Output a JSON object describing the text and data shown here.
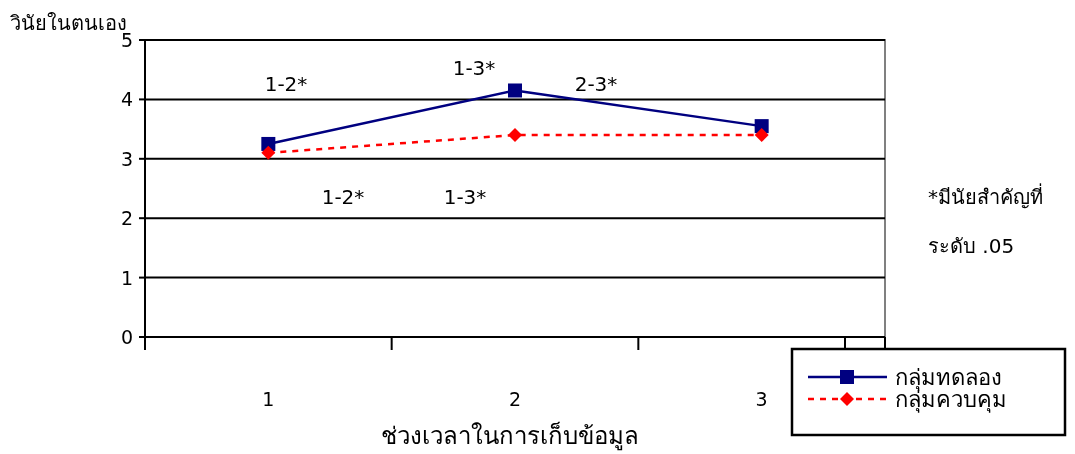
{
  "chart_data": {
    "type": "line",
    "xlabel": "ช่วงเวลาในการเก็บข้อมูล",
    "ylabel": "วินัยในตนเอง",
    "categories": [
      "1",
      "2",
      "3"
    ],
    "series": [
      {
        "name": "กลุ่มทดลอง",
        "color": "#000080",
        "values": [
          3.25,
          4.15,
          3.55
        ],
        "marker": "square",
        "line_style": "solid"
      },
      {
        "name": "กลุ่มควบคุม",
        "color": "#ff0000",
        "values": [
          3.1,
          3.4,
          3.4
        ],
        "marker": "diamond",
        "line_style": "dashed"
      }
    ],
    "ylim": [
      0,
      5
    ],
    "yticks": [
      0,
      1,
      2,
      3,
      4,
      5
    ],
    "grid": "y",
    "legend": "bottom right",
    "annotations": [
      "1-2*",
      "1-3*",
      "2-3*",
      "1-2*",
      "1-3*",
      "*มีนัยสำคัญที่",
      "ระดับ .05"
    ]
  }
}
